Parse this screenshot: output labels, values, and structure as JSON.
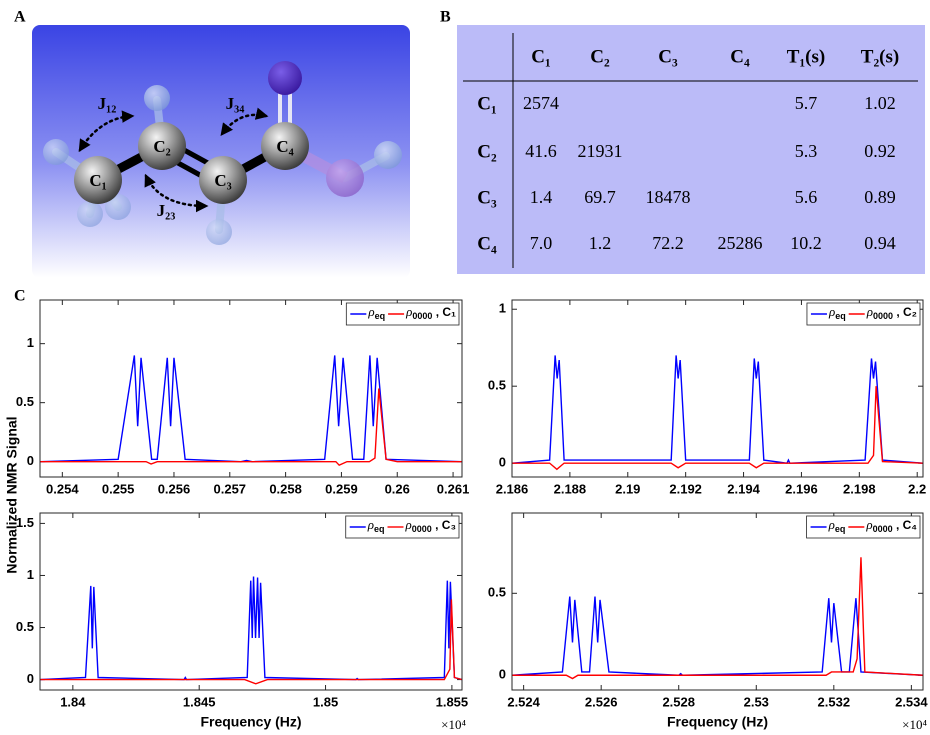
{
  "panel_a": {
    "label": "A",
    "atoms": [
      "C₁",
      "C₂",
      "C₃",
      "C₄"
    ],
    "couplings": [
      "J₁₂",
      "J₂₃",
      "J₃₄"
    ]
  },
  "panel_b": {
    "label": "B",
    "columns": [
      "C₁",
      "C₂",
      "C₃",
      "C₄",
      "T₁(s)",
      "T₂(s)"
    ],
    "rows": [
      {
        "label": "C₁",
        "couplings": [
          "2574"
        ],
        "T1": "5.7",
        "T2": "1.02"
      },
      {
        "label": "C₂",
        "couplings": [
          "41.6",
          "21931"
        ],
        "T1": "5.3",
        "T2": "0.92"
      },
      {
        "label": "C₃",
        "couplings": [
          "1.4",
          "69.7",
          "18478"
        ],
        "T1": "5.6",
        "T2": "0.89"
      },
      {
        "label": "C₄",
        "couplings": [
          "7.0",
          "1.2",
          "72.2",
          "25286"
        ],
        "T1": "10.2",
        "T2": "0.94"
      }
    ]
  },
  "panel_c_label": "C",
  "y_label": "Normalized NMR Signal",
  "chart_data": [
    {
      "type": "line",
      "xlim": [
        0.2536,
        0.26116
      ],
      "ylim": [
        -0.13,
        1.37
      ],
      "xticks": [
        0.254,
        0.255,
        0.256,
        0.257,
        0.258,
        0.259,
        0.26,
        0.261
      ],
      "yticks": [
        0,
        0.5,
        1
      ],
      "series": [
        {
          "name": "ρ",
          "name_sub": "eq",
          "color": "#0000ff",
          "x": [
            0.2536,
            0.255,
            0.25529,
            0.25535,
            0.25541,
            0.2556,
            0.2557,
            0.25588,
            0.25594,
            0.256,
            0.2562,
            0.2572,
            0.2573,
            0.2574,
            0.2587,
            0.25888,
            0.25895,
            0.25903,
            0.2592,
            0.2594,
            0.25951,
            0.25957,
            0.25964,
            0.2598,
            0.26116
          ],
          "values": [
            0,
            0.02,
            0.9,
            0.3,
            0.88,
            0.02,
            0.02,
            0.88,
            0.3,
            0.88,
            0.02,
            0,
            0.01,
            0,
            0.02,
            0.9,
            0.3,
            0.88,
            0.02,
            0.02,
            0.9,
            0.3,
            0.88,
            0.02,
            0
          ]
        },
        {
          "name": "ρ",
          "name_sub": "0000",
          "name_suffix": " , C₁",
          "color": "#ff0000",
          "x": [
            0.2536,
            0.2555,
            0.25559,
            0.2557,
            0.2589,
            0.25896,
            0.2591,
            0.2595,
            0.2596,
            0.25967,
            0.2598,
            0.26,
            0.26116
          ],
          "values": [
            0,
            0,
            -0.02,
            0,
            0,
            -0.03,
            0,
            0,
            0.03,
            0.62,
            0.02,
            0,
            0
          ]
        }
      ]
    },
    {
      "type": "line",
      "xlim": [
        2.186,
        2.2002
      ],
      "ylim": [
        -0.09,
        1.06
      ],
      "xticks": [
        2.186,
        2.188,
        2.19,
        2.192,
        2.194,
        2.196,
        2.198,
        2.2
      ],
      "yticks": [
        0,
        0.5,
        1
      ],
      "series": [
        {
          "name": "ρ",
          "name_sub": "eq",
          "color": "#0000ff",
          "x": [
            2.186,
            2.1873,
            2.18749,
            2.18756,
            2.18763,
            2.1878,
            2.1915,
            2.19167,
            2.19174,
            2.19181,
            2.192,
            2.1942,
            2.19437,
            2.19444,
            2.19451,
            2.1947,
            2.1955,
            2.19555,
            2.1956,
            2.1982,
            2.19842,
            2.19849,
            2.19856,
            2.1988,
            2.2002
          ],
          "values": [
            0,
            0.02,
            0.7,
            0.55,
            0.67,
            0.02,
            0.02,
            0.7,
            0.55,
            0.67,
            0.02,
            0.02,
            0.68,
            0.55,
            0.66,
            0.02,
            0,
            0.02,
            0,
            0.02,
            0.68,
            0.55,
            0.66,
            0.02,
            0
          ]
        },
        {
          "name": "ρ",
          "name_sub": "0000",
          "name_suffix": " , C₂",
          "color": "#ff0000",
          "x": [
            2.186,
            2.1873,
            2.18755,
            2.1878,
            2.1915,
            2.19174,
            2.192,
            2.1942,
            2.19444,
            2.1947,
            2.1983,
            2.19849,
            2.19858,
            2.1988,
            2.2002
          ],
          "values": [
            0,
            0,
            -0.04,
            0,
            0,
            -0.03,
            0,
            0,
            -0.03,
            0,
            0,
            0.05,
            0.5,
            0.01,
            0
          ]
        }
      ]
    },
    {
      "type": "line",
      "xlim": [
        1.8387,
        1.8554
      ],
      "ylim": [
        -0.1,
        1.6
      ],
      "xticks": [
        1.84,
        1.845,
        1.85,
        1.855
      ],
      "yticks": [
        0,
        0.5,
        1,
        1.5
      ],
      "x_label": "Frequency (Hz)",
      "x_exponent": "×10⁴",
      "series": [
        {
          "name": "ρ",
          "name_sub": "eq",
          "color": "#0000ff",
          "x": [
            1.8387,
            1.8405,
            1.84071,
            1.84077,
            1.84083,
            1.841,
            1.8444,
            1.84445,
            1.8445,
            1.8469,
            1.84704,
            1.8471,
            1.84715,
            1.84723,
            1.84731,
            1.84737,
            1.84743,
            1.8476,
            1.8512,
            1.85125,
            1.8513,
            1.8547,
            1.85482,
            1.85488,
            1.85494,
            1.8551,
            1.8554
          ],
          "values": [
            0,
            0.02,
            0.9,
            0.3,
            0.89,
            0.02,
            0,
            0.02,
            0,
            0.02,
            0.95,
            0.4,
            0.99,
            0.4,
            0.98,
            0.4,
            0.93,
            0.02,
            0,
            0.01,
            0,
            0.02,
            0.95,
            0.3,
            0.94,
            0.02,
            0
          ]
        },
        {
          "name": "ρ",
          "name_sub": "0000",
          "name_suffix": " , C₃",
          "color": "#ff0000",
          "x": [
            1.8387,
            1.8468,
            1.84724,
            1.8477,
            1.8547,
            1.85492,
            1.85498,
            1.8551,
            1.8554
          ],
          "values": [
            0,
            0,
            -0.04,
            0,
            0,
            0.1,
            0.77,
            0.02,
            0
          ]
        }
      ]
    },
    {
      "type": "line",
      "xlim": [
        2.5237,
        2.5343
      ],
      "ylim": [
        -0.09,
        0.99
      ],
      "xticks": [
        2.524,
        2.526,
        2.528,
        2.53,
        2.532,
        2.534
      ],
      "yticks": [
        0,
        0.5
      ],
      "x_label": "Frequency (Hz)",
      "x_exponent": "×10⁴",
      "series": [
        {
          "name": "ρ",
          "name_sub": "eq",
          "color": "#0000ff",
          "x": [
            2.5237,
            2.525,
            2.52519,
            2.52526,
            2.52532,
            2.5255,
            2.5257,
            2.52584,
            2.52591,
            2.52597,
            2.5262,
            2.528,
            2.52805,
            2.5281,
            2.5317,
            2.53187,
            2.53194,
            2.532,
            2.5322,
            2.5324,
            2.53257,
            2.5327,
            2.5343
          ],
          "values": [
            0,
            0.02,
            0.48,
            0.2,
            0.46,
            0.02,
            0.02,
            0.48,
            0.2,
            0.46,
            0.02,
            0,
            0.01,
            0,
            0.02,
            0.47,
            0.2,
            0.44,
            0.02,
            0.02,
            0.47,
            0.02,
            0
          ]
        },
        {
          "name": "ρ",
          "name_sub": "0000",
          "name_suffix": " , C₄",
          "color": "#ff0000",
          "x": [
            2.5237,
            2.5251,
            2.52526,
            2.5254,
            2.5318,
            2.53194,
            2.5325,
            2.5326,
            2.5327,
            2.5328,
            2.5343
          ],
          "values": [
            0,
            0,
            -0.02,
            0,
            0,
            0.02,
            0.02,
            0.1,
            0.72,
            0.02,
            0
          ]
        }
      ]
    }
  ]
}
